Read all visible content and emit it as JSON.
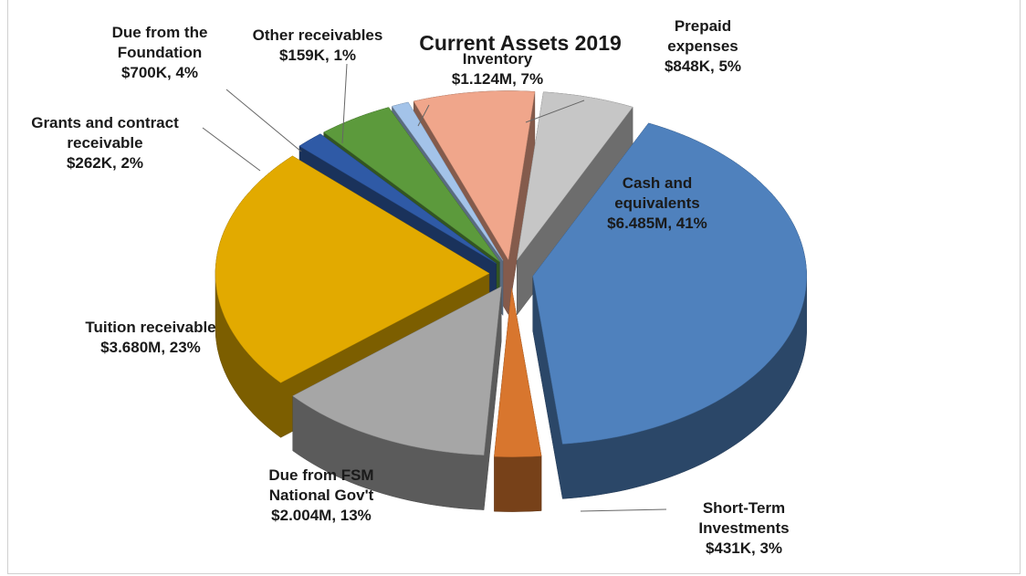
{
  "chart_data": {
    "type": "pie",
    "title": "Current Assets 2019",
    "categories": [
      "Cash and equivalents",
      "Short-Term Investments",
      "Due from FSM National Gov't",
      "Tuition receivable",
      "Grants and contract receivable",
      "Due from the Foundation",
      "Other receivables",
      "Inventory",
      "Prepaid expenses"
    ],
    "values": [
      6485000,
      431000,
      2004000,
      3680000,
      262000,
      700000,
      159000,
      1124000,
      848000
    ],
    "value_labels": [
      "$6.485M, 41%",
      "$431K, 3%",
      "$2.004M, 13%",
      "$3.680M, 23%",
      "$262K, 2%",
      "$700K,   4%",
      "$159K, 1%",
      "$1.124M, 7%",
      "$848K, 5%"
    ],
    "colors": [
      "#4f81bd",
      "#d8762e",
      "#a6a6a6",
      "#e2aa00",
      "#2f5aa6",
      "#5c9a3c",
      "#a3c3e9",
      "#f0a68b",
      "#c6c6c6"
    ]
  }
}
